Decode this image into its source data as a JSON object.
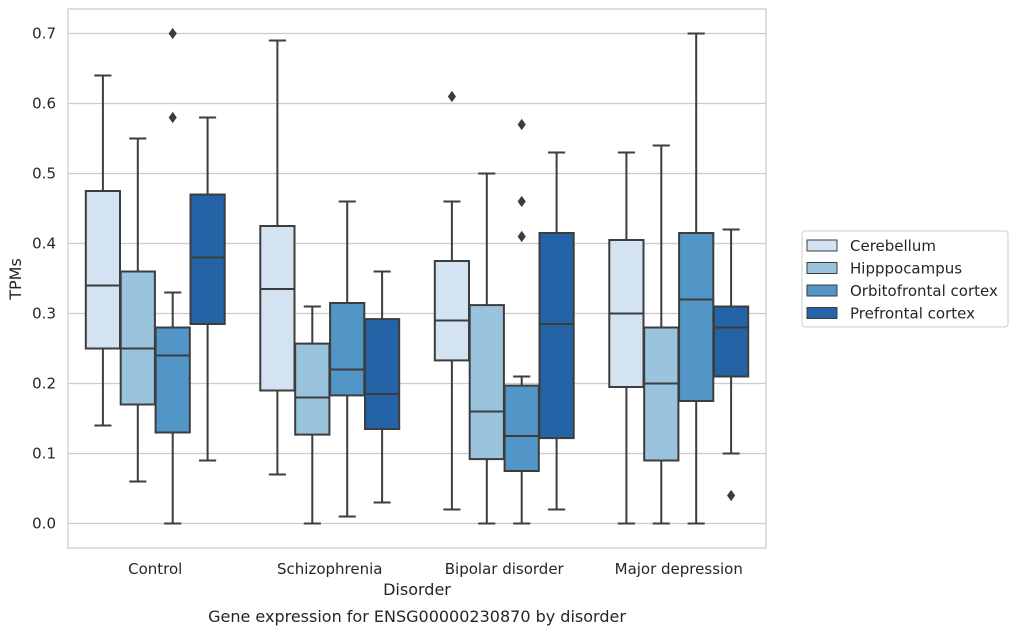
{
  "chart_data": {
    "type": "box",
    "title": "",
    "caption": "Gene expression for ENSG00000230870 by disorder",
    "xlabel": "Disorder",
    "ylabel": "TPMs",
    "ylim": [
      -0.035,
      0.735
    ],
    "yticks": [
      0.0,
      0.1,
      0.2,
      0.3,
      0.4,
      0.5,
      0.6,
      0.7
    ],
    "ytick_labels": [
      "0.0",
      "0.1",
      "0.2",
      "0.3",
      "0.4",
      "0.5",
      "0.6",
      "0.7"
    ],
    "grid": "horizontal",
    "legend_position": "right",
    "categories": [
      "Control",
      "Schizophrenia",
      "Bipolar disorder",
      "Major depression"
    ],
    "series": [
      {
        "name": "Cerebellum",
        "color": "#d3e3f2",
        "boxes": [
          {
            "whisker_low": 0.14,
            "q1": 0.25,
            "median": 0.34,
            "q3": 0.475,
            "whisker_high": 0.64,
            "outliers": []
          },
          {
            "whisker_low": 0.07,
            "q1": 0.19,
            "median": 0.335,
            "q3": 0.425,
            "whisker_high": 0.69,
            "outliers": []
          },
          {
            "whisker_low": 0.02,
            "q1": 0.233,
            "median": 0.29,
            "q3": 0.375,
            "whisker_high": 0.46,
            "outliers": [
              0.61
            ]
          },
          {
            "whisker_low": 0.0,
            "q1": 0.195,
            "median": 0.3,
            "q3": 0.405,
            "whisker_high": 0.53,
            "outliers": []
          }
        ]
      },
      {
        "name": "Hipppocampus",
        "color": "#9ac4de",
        "boxes": [
          {
            "whisker_low": 0.06,
            "q1": 0.17,
            "median": 0.25,
            "q3": 0.36,
            "whisker_high": 0.55,
            "outliers": []
          },
          {
            "whisker_low": 0.0,
            "q1": 0.127,
            "median": 0.18,
            "q3": 0.257,
            "whisker_high": 0.31,
            "outliers": []
          },
          {
            "whisker_low": 0.0,
            "q1": 0.092,
            "median": 0.16,
            "q3": 0.312,
            "whisker_high": 0.5,
            "outliers": []
          },
          {
            "whisker_low": 0.0,
            "q1": 0.09,
            "median": 0.2,
            "q3": 0.28,
            "whisker_high": 0.54,
            "outliers": []
          }
        ]
      },
      {
        "name": "Orbitofrontal cortex",
        "color": "#5196c7",
        "boxes": [
          {
            "whisker_low": 0.0,
            "q1": 0.13,
            "median": 0.24,
            "q3": 0.28,
            "whisker_high": 0.33,
            "outliers": [
              0.58,
              0.7
            ]
          },
          {
            "whisker_low": 0.01,
            "q1": 0.183,
            "median": 0.22,
            "q3": 0.315,
            "whisker_high": 0.46,
            "outliers": []
          },
          {
            "whisker_low": 0.0,
            "q1": 0.075,
            "median": 0.125,
            "q3": 0.197,
            "whisker_high": 0.21,
            "outliers": [
              0.41,
              0.46,
              0.57
            ]
          },
          {
            "whisker_low": 0.0,
            "q1": 0.175,
            "median": 0.32,
            "q3": 0.415,
            "whisker_high": 0.7,
            "outliers": []
          }
        ]
      },
      {
        "name": "Prefrontal cortex",
        "color": "#2464a6",
        "boxes": [
          {
            "whisker_low": 0.09,
            "q1": 0.285,
            "median": 0.38,
            "q3": 0.47,
            "whisker_high": 0.58,
            "outliers": []
          },
          {
            "whisker_low": 0.03,
            "q1": 0.135,
            "median": 0.185,
            "q3": 0.292,
            "whisker_high": 0.36,
            "outliers": []
          },
          {
            "whisker_low": 0.02,
            "q1": 0.122,
            "median": 0.285,
            "q3": 0.415,
            "whisker_high": 0.53,
            "outliers": []
          },
          {
            "whisker_low": 0.1,
            "q1": 0.21,
            "median": 0.28,
            "q3": 0.31,
            "whisker_high": 0.42,
            "outliers": [
              0.04
            ]
          }
        ]
      }
    ]
  }
}
